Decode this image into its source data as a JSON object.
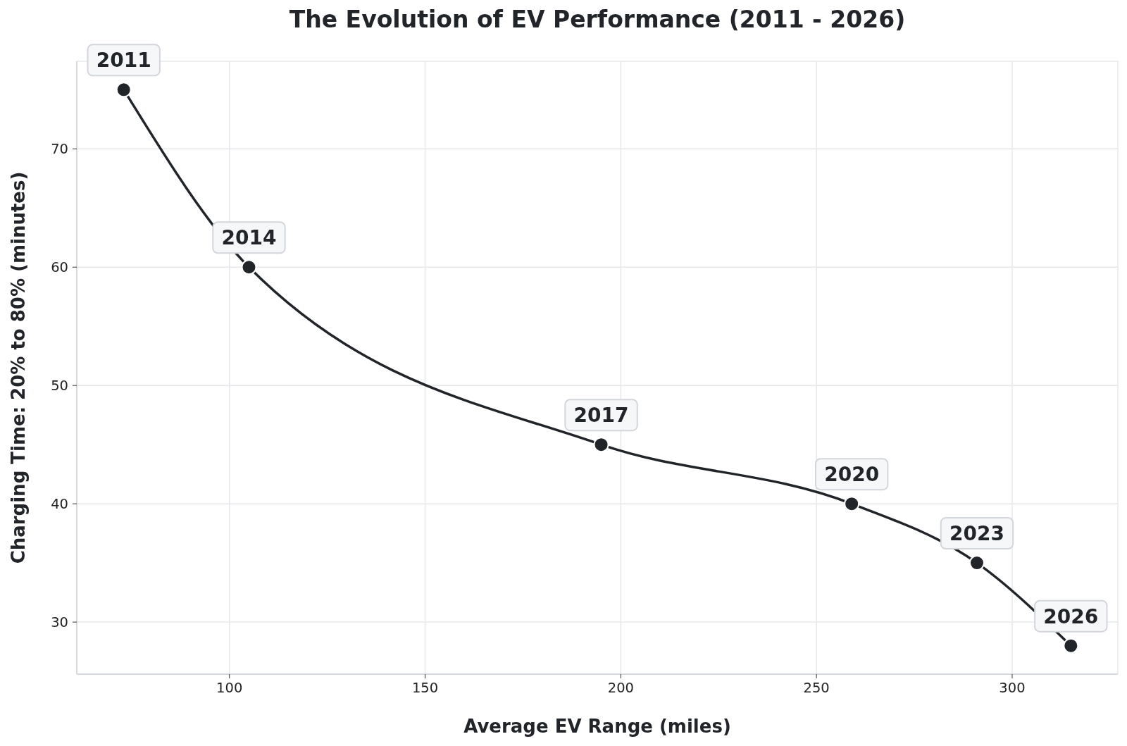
{
  "chart_data": {
    "type": "line",
    "title": "The Evolution of EV Performance (2011 - 2026)",
    "xlabel": "Average EV Range (miles)",
    "ylabel": "Charging Time: 20% to 80% (minutes)",
    "x": [
      73,
      105,
      195,
      259,
      291,
      315
    ],
    "series": [
      {
        "color": "#212529",
        "values": [
          75,
          60,
          45,
          40,
          35,
          28
        ]
      }
    ],
    "xlim": [
      61,
      327
    ],
    "ylim": [
      25.6,
      77.4
    ],
    "xticks": [
      100,
      150,
      200,
      250,
      300
    ],
    "yticks": [
      30,
      40,
      50,
      60,
      70
    ],
    "grid": true,
    "marker": "circle",
    "line_style": "solid",
    "annotations": [
      {
        "text": "2011",
        "x": 73,
        "y": 75
      },
      {
        "text": "2014",
        "x": 105,
        "y": 60
      },
      {
        "text": "2017",
        "x": 195,
        "y": 45
      },
      {
        "text": "2020",
        "x": 259,
        "y": 40
      },
      {
        "text": "2023",
        "x": 291,
        "y": 35
      },
      {
        "text": "2026",
        "x": 315,
        "y": 28
      }
    ]
  }
}
